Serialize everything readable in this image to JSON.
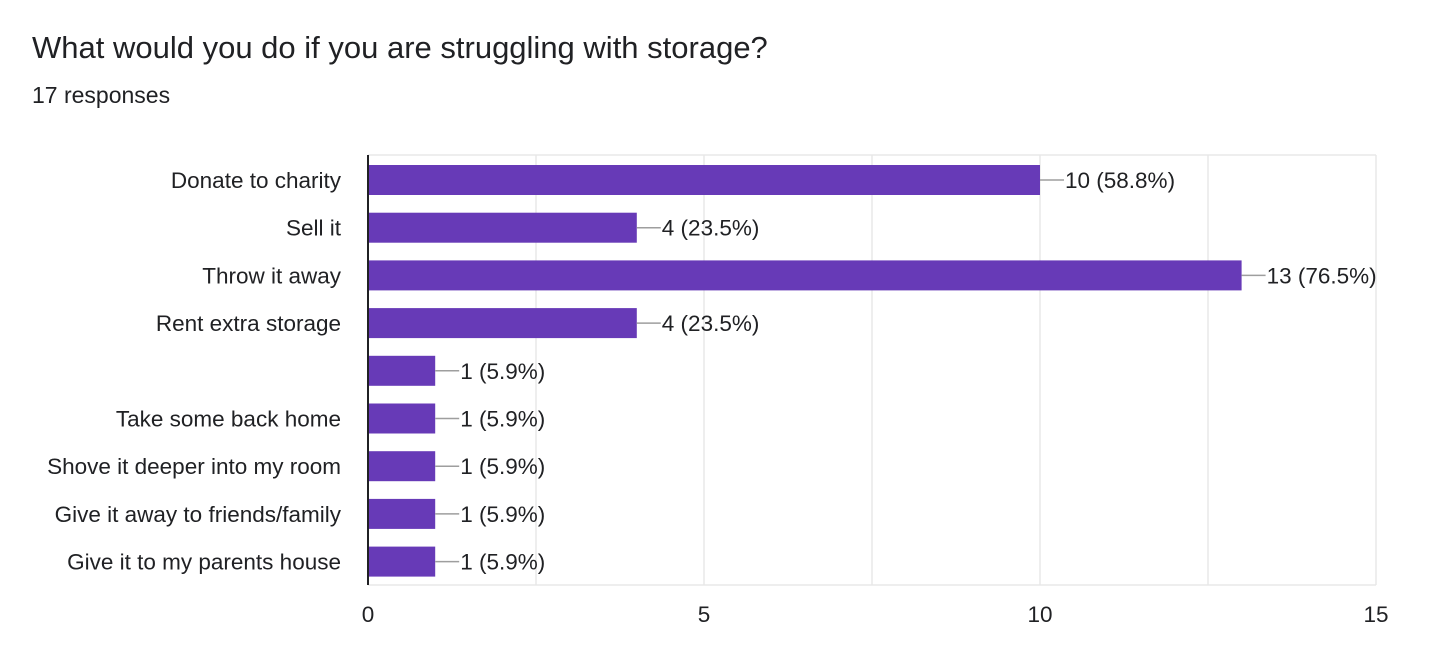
{
  "question": {
    "title": "What would you do if you are struggling with storage?",
    "responses": "17 responses"
  },
  "colors": {
    "bar": "#673ab7",
    "grid": "#e8e8e8",
    "axis": "#202124",
    "leader": "#9e9e9e"
  },
  "chart_data": {
    "type": "bar",
    "orientation": "horizontal",
    "categories": [
      "Donate to charity",
      "Sell it",
      "Throw it away",
      "Rent extra storage",
      "",
      "Take some back home",
      "Shove it deeper into my room",
      "Give it away to friends/family",
      "Give it to my parents house"
    ],
    "values": [
      10,
      4,
      13,
      4,
      1,
      1,
      1,
      1,
      1
    ],
    "data_labels": [
      "10 (58.8%)",
      "4 (23.5%)",
      "13 (76.5%)",
      "4 (23.5%)",
      "1 (5.9%)",
      "1 (5.9%)",
      "1 (5.9%)",
      "1 (5.9%)",
      "1 (5.9%)"
    ],
    "xlim": [
      0,
      15
    ],
    "xticks": [
      0,
      5,
      10,
      15
    ],
    "gridlines": [
      2.5,
      5,
      7.5,
      10,
      12.5,
      15
    ],
    "grid": true,
    "legend": "none"
  }
}
